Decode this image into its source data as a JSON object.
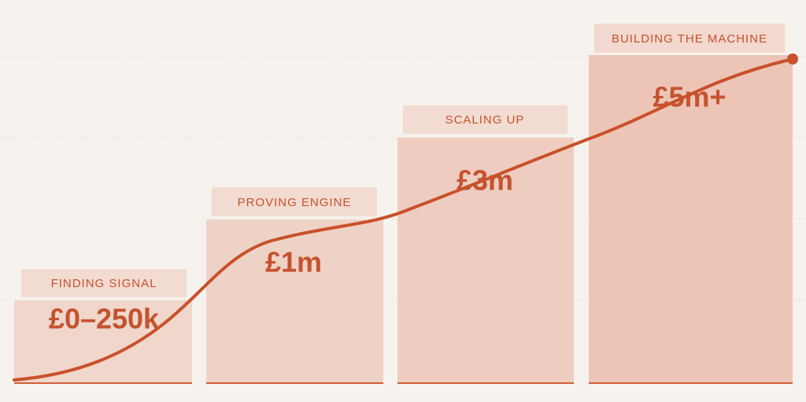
{
  "stages": [
    {
      "label": "FINDING SIGNAL",
      "value": "£0–250k"
    },
    {
      "label": "PROVING ENGINE",
      "value": "£1m"
    },
    {
      "label": "SCALING UP",
      "value": "£3m"
    },
    {
      "label": "BUILDING THE MACHINE",
      "value": "£5m+"
    }
  ]
}
